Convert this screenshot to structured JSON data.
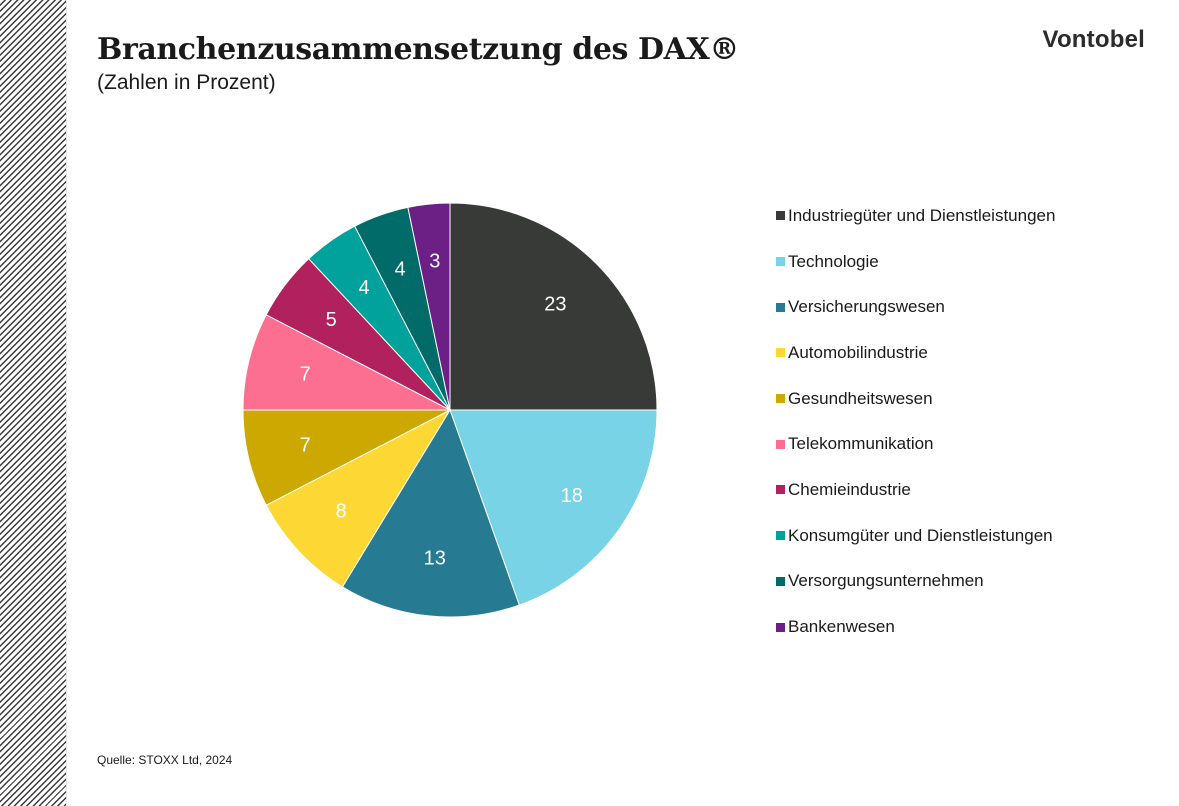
{
  "brand": "Vontobel",
  "source": "Quelle: STOXX Ltd, 2024",
  "chart_data": {
    "type": "pie",
    "title": "Branchenzusammensetzung des DAX®",
    "subtitle": "(Zahlen in Prozent)",
    "legend_position": "right",
    "slices": [
      {
        "label": "Industriegüter und Dienstleistungen",
        "value": 23,
        "color": "#383a37"
      },
      {
        "label": "Technologie",
        "value": 18,
        "color": "#78d3e6"
      },
      {
        "label": "Versicherungswesen",
        "value": 13,
        "color": "#267b93"
      },
      {
        "label": "Automobilindustrie",
        "value": 8,
        "color": "#fdd835"
      },
      {
        "label": "Gesundheitswesen",
        "value": 7,
        "color": "#cca800"
      },
      {
        "label": "Telekommunikation",
        "value": 7,
        "color": "#fd6f91"
      },
      {
        "label": "Chemieindustrie",
        "value": 5,
        "color": "#b1215e"
      },
      {
        "label": "Konsumgüter und Dienstleistungen",
        "value": 4,
        "color": "#00a29b"
      },
      {
        "label": "Versorgungsunternehmen",
        "value": 4,
        "color": "#016b6a"
      },
      {
        "label": "Bankenwesen",
        "value": 3,
        "color": "#6c1f85"
      }
    ]
  }
}
